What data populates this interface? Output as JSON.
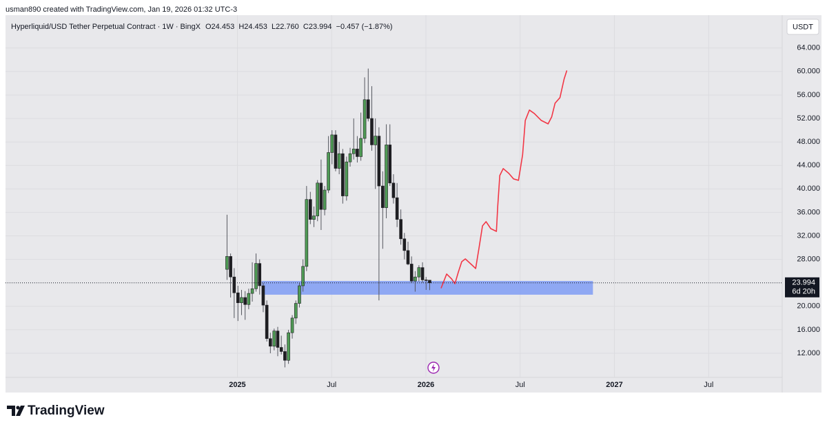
{
  "header": {
    "credit": "usman890 created with TradingView.com, Jan 19, 2026 01:32 UTC-3"
  },
  "currency_button": "USDT",
  "footer": {
    "brand": "TradingView"
  },
  "chart_data": {
    "type": "candlestick",
    "symbol": "Hyperliquid/USD Tether Perpetual Contract · 1W · BingX",
    "ohlc_legend": "O24.453  H24.453  L22.760  C23.994  −0.457 (−1.87%)",
    "xlim": [
      2023.77,
      2027.89
    ],
    "xticks": [
      2025,
      {
        "value": 2025.5,
        "label": "Jul"
      },
      2026,
      {
        "value": 2026.5,
        "label": "Jul"
      },
      2027,
      {
        "value": 2027.5,
        "label": "Jul"
      }
    ],
    "ylim": [
      8.25,
      69.6
    ],
    "yticks": [
      {
        "value": 12,
        "label": "12.000"
      },
      {
        "value": 16,
        "label": "16.000"
      },
      {
        "value": 20,
        "label": "20.000"
      },
      {
        "value": 28,
        "label": "28.000"
      },
      {
        "value": 32,
        "label": "32.000"
      },
      {
        "value": 36,
        "label": "36.000"
      },
      {
        "value": 40,
        "label": "40.000"
      },
      {
        "value": 44,
        "label": "44.000"
      },
      {
        "value": 48,
        "label": "48.000"
      },
      {
        "value": 52,
        "label": "52.000"
      },
      {
        "value": 56,
        "label": "56.000"
      },
      {
        "value": 60,
        "label": "60.000"
      },
      {
        "value": 64,
        "label": "64.000"
      }
    ],
    "grid": true,
    "up_color": "#4f9a55",
    "down_color": "#1e1e22",
    "candles": {
      "x": [
        2024.945,
        2024.964,
        2024.983,
        2025.003,
        2025.022,
        2025.041,
        2025.06,
        2025.079,
        2025.099,
        2025.118,
        2025.137,
        2025.156,
        2025.175,
        2025.195,
        2025.214,
        2025.233,
        2025.252,
        2025.271,
        2025.291,
        2025.31,
        2025.329,
        2025.348,
        2025.367,
        2025.387,
        2025.406,
        2025.425,
        2025.444,
        2025.463,
        2025.483,
        2025.502,
        2025.521,
        2025.54,
        2025.559,
        2025.579,
        2025.598,
        2025.617,
        2025.636,
        2025.655,
        2025.675,
        2025.694,
        2025.713,
        2025.732,
        2025.751,
        2025.771,
        2025.79,
        2025.809,
        2025.828,
        2025.847,
        2025.867,
        2025.886,
        2025.905,
        2025.924,
        2025.943,
        2025.963,
        2025.982,
        2026.001,
        2026.02
      ],
      "open": [
        26.3,
        28.5,
        25,
        22.3,
        20.6,
        21.5,
        20.3,
        22.2,
        23,
        27.3,
        23.5,
        20.2,
        14.5,
        13.2,
        15.8,
        13,
        12.3,
        10.8,
        15.5,
        18,
        20.5,
        23.5,
        26.8,
        38.2,
        34.8,
        35.4,
        41,
        36.5,
        39.8,
        46.2,
        49.2,
        43.5,
        46,
        38.8,
        44.6,
        46,
        46.8,
        45.5,
        48.6,
        55.2,
        52,
        47.5,
        49,
        40.5,
        36.8,
        47.5,
        41,
        38.5,
        34.8,
        31.5,
        29.5,
        27.2,
        24.3,
        25,
        26.6,
        24.5,
        24.453
      ],
      "high": [
        35.6,
        29,
        26.5,
        23.5,
        22.8,
        22.6,
        23,
        27.5,
        29,
        28,
        24,
        21,
        15.5,
        16.2,
        16.5,
        15,
        13.5,
        16,
        18.5,
        21,
        24,
        28,
        40.5,
        39.5,
        37,
        41.5,
        45,
        40.5,
        49,
        50,
        50,
        48,
        46.8,
        45.5,
        47,
        52,
        49,
        53,
        59,
        60.5,
        57.5,
        52,
        50.5,
        43,
        51,
        51,
        42.5,
        41,
        36.5,
        32.5,
        31,
        28.5,
        26,
        27,
        27.5,
        25,
        24.453
      ],
      "low": [
        24.5,
        21.5,
        18,
        17.5,
        18.5,
        17.7,
        19.5,
        20.8,
        22.5,
        22,
        19,
        14,
        12,
        12.5,
        11.5,
        11.8,
        9.6,
        10.2,
        14.5,
        17,
        19.8,
        22.5,
        26,
        34,
        33.5,
        34.5,
        33,
        35.5,
        39.3,
        44.2,
        43,
        42.5,
        37.5,
        38,
        43.8,
        45,
        44.5,
        44.8,
        47.8,
        51.5,
        46.5,
        40,
        21,
        29.8,
        35,
        40.5,
        37.5,
        33.5,
        30.5,
        28,
        27,
        24,
        22.5,
        24.2,
        24,
        22.8,
        22.76
      ],
      "close": [
        28.5,
        25,
        22.3,
        20.6,
        21.5,
        20.3,
        22.2,
        23,
        27.3,
        23.5,
        20.2,
        14.5,
        13.2,
        15.8,
        13,
        12.3,
        10.8,
        15.5,
        18,
        20.5,
        23.5,
        26.8,
        38.2,
        34.8,
        35.4,
        41,
        36.5,
        39.8,
        46.2,
        49.2,
        43.5,
        46,
        38.8,
        44.6,
        46,
        46.8,
        45.5,
        48.6,
        55.2,
        52,
        47.5,
        49,
        40.5,
        36.8,
        47.5,
        41,
        38.5,
        34.8,
        31.5,
        29.5,
        27.2,
        24.3,
        25,
        26.6,
        24.5,
        24.45,
        23.994
      ]
    },
    "last_price": 23.994,
    "countdown": "6d 20h",
    "zone": {
      "x": [
        2025.128,
        2026.886
      ],
      "y": [
        21.98,
        24.32
      ],
      "color": "#7f9cf5"
    },
    "forecast": {
      "color": "#f23645",
      "x": [
        2026.081,
        2026.11,
        2026.136,
        2026.154,
        2026.172,
        2026.19,
        2026.209,
        2026.245,
        2026.264,
        2026.282,
        2026.3,
        2026.319,
        2026.344,
        2026.374,
        2026.381,
        2026.392,
        2026.41,
        2026.44,
        2026.465,
        2026.491,
        2026.513,
        2026.527,
        2026.549,
        2026.575,
        2026.612,
        2026.648,
        2026.667,
        2026.685,
        2026.711,
        2026.733,
        2026.747
      ],
      "y": [
        23.15,
        25.5,
        24.68,
        23.85,
        25.85,
        27.6,
        28.08,
        27.02,
        26.44,
        29.96,
        33.71,
        34.42,
        33.24,
        32.77,
        37.0,
        42.28,
        43.46,
        42.63,
        41.7,
        41.46,
        45.8,
        51.67,
        53.43,
        52.85,
        51.67,
        51.08,
        52.26,
        54.6,
        55.55,
        58.7,
        60.1
      ]
    }
  }
}
